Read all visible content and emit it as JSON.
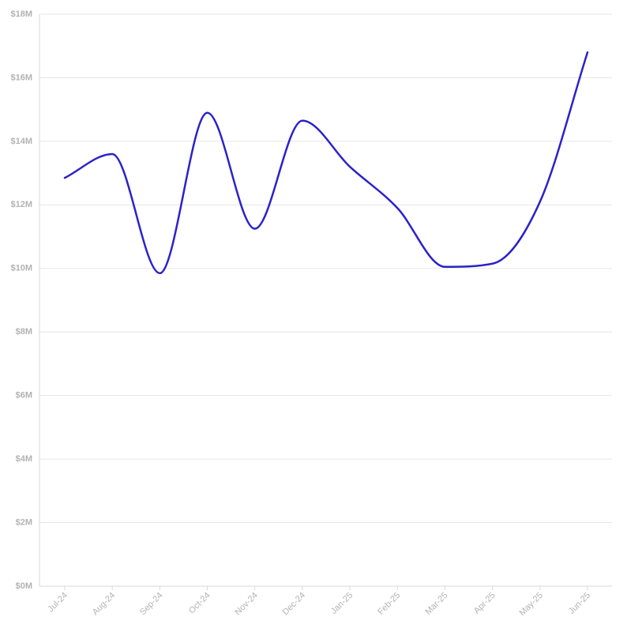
{
  "chart_data": {
    "type": "line",
    "title": "",
    "xlabel": "",
    "ylabel": "",
    "categories": [
      "Jul-24",
      "Aug-24",
      "Sep-24",
      "Oct-24",
      "Nov-24",
      "Dec-24",
      "Jan-25",
      "Feb-25",
      "Mar-25",
      "Apr-25",
      "May-25",
      "Jun-25"
    ],
    "series": [
      {
        "values": [
          12.85,
          13.6,
          9.85,
          14.9,
          11.25,
          14.65,
          13.2,
          11.9,
          10.05,
          10.15,
          12.1,
          16.8
        ],
        "color": "#2b22c9"
      }
    ],
    "ylim": [
      0,
      18
    ],
    "yticks": [
      0,
      2,
      4,
      6,
      8,
      10,
      12,
      14,
      16,
      18
    ],
    "ytick_labels": [
      "$0M",
      "$2M",
      "$4M",
      "$6M",
      "$8M",
      "$10M",
      "$12M",
      "$14M",
      "$16M",
      "$18M"
    ],
    "grid": true,
    "legend": "none",
    "smooth": true
  }
}
